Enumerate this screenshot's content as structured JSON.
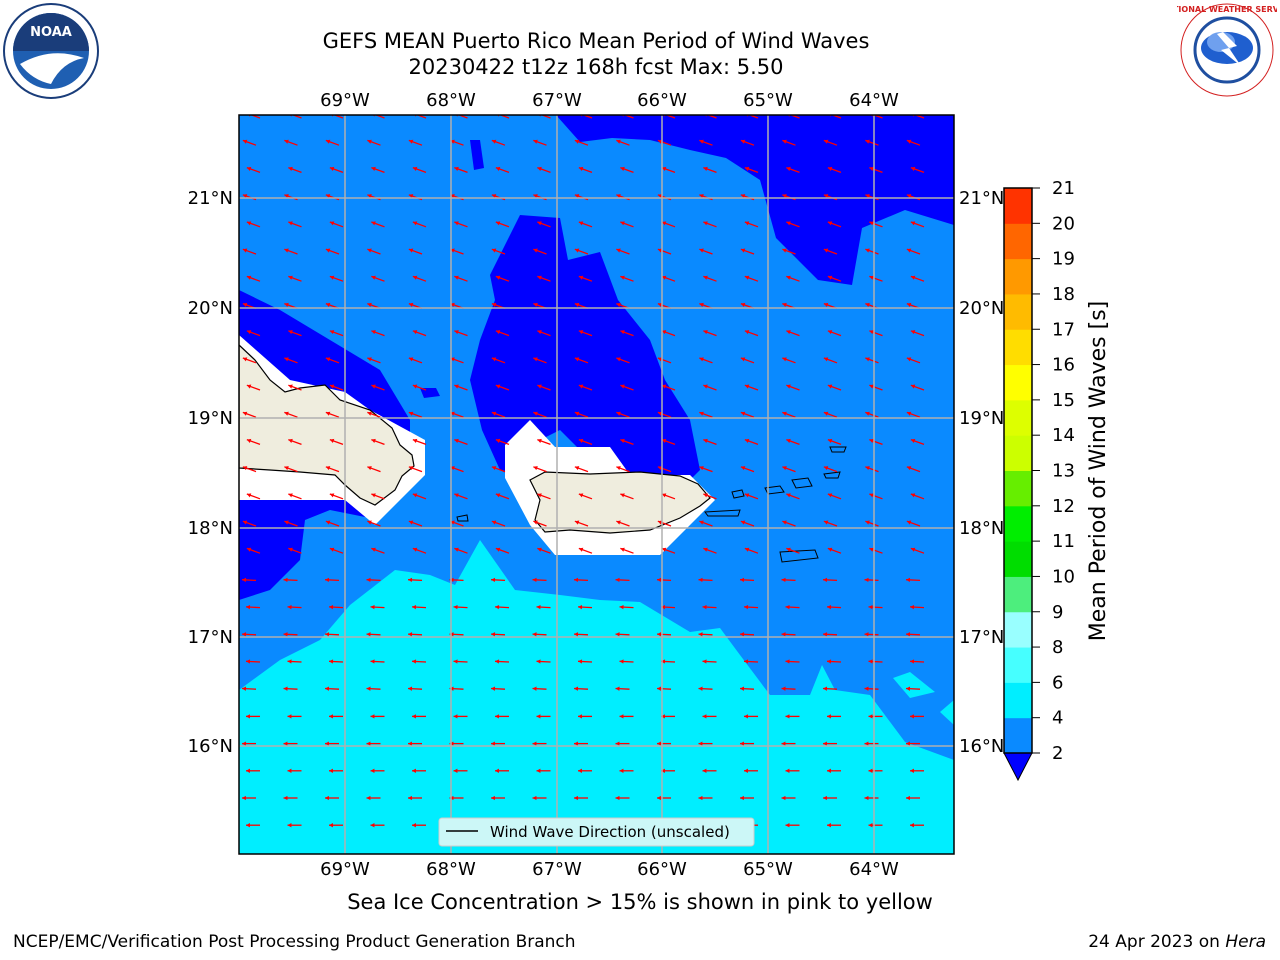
{
  "title": {
    "line1": "GEFS MEAN Puerto Rico Mean Period of Wind Waves",
    "line2": "20230422 t12z 168h fcst   Max: 5.50"
  },
  "logos": {
    "left": {
      "icon": "noaa-logo",
      "label": "NOAA"
    },
    "right": {
      "icon": "nws-logo",
      "label": "NATIONAL WEATHER SERVICE"
    }
  },
  "map": {
    "lon_labels": [
      "69°W",
      "68°W",
      "67°W",
      "66°W",
      "65°W",
      "64°W"
    ],
    "lat_labels": [
      "21°N",
      "20°N",
      "19°N",
      "18°N",
      "17°N",
      "16°N"
    ],
    "legend_label": "Wind Wave Direction (unscaled)",
    "arrow_color": "#ff0000",
    "land_color": "#efedde"
  },
  "colorbar": {
    "label": "Mean Period of Wind Waves [s]",
    "ticks": [
      "2",
      "4",
      "6",
      "8",
      "9",
      "10",
      "11",
      "12",
      "13",
      "14",
      "15",
      "16",
      "17",
      "18",
      "19",
      "20",
      "21"
    ],
    "colors": [
      "#0a8aff",
      "#00eeff",
      "#46ffff",
      "#99ffff",
      "#4dee7d",
      "#00dd00",
      "#00ee00",
      "#66ee00",
      "#ccff00",
      "#ddff00",
      "#ffff00",
      "#ffdd00",
      "#ffbb00",
      "#ff9900",
      "#ff6600",
      "#ff3300"
    ],
    "under_color": "#0000ff"
  },
  "subtitle": "Sea Ice Concentration > 15% is shown in pink to yellow",
  "footer": {
    "left": "NCEP/EMC/Verification Post Processing Product Generation Branch",
    "date": "24 Apr 2023 on",
    "machine": "Hera"
  }
}
